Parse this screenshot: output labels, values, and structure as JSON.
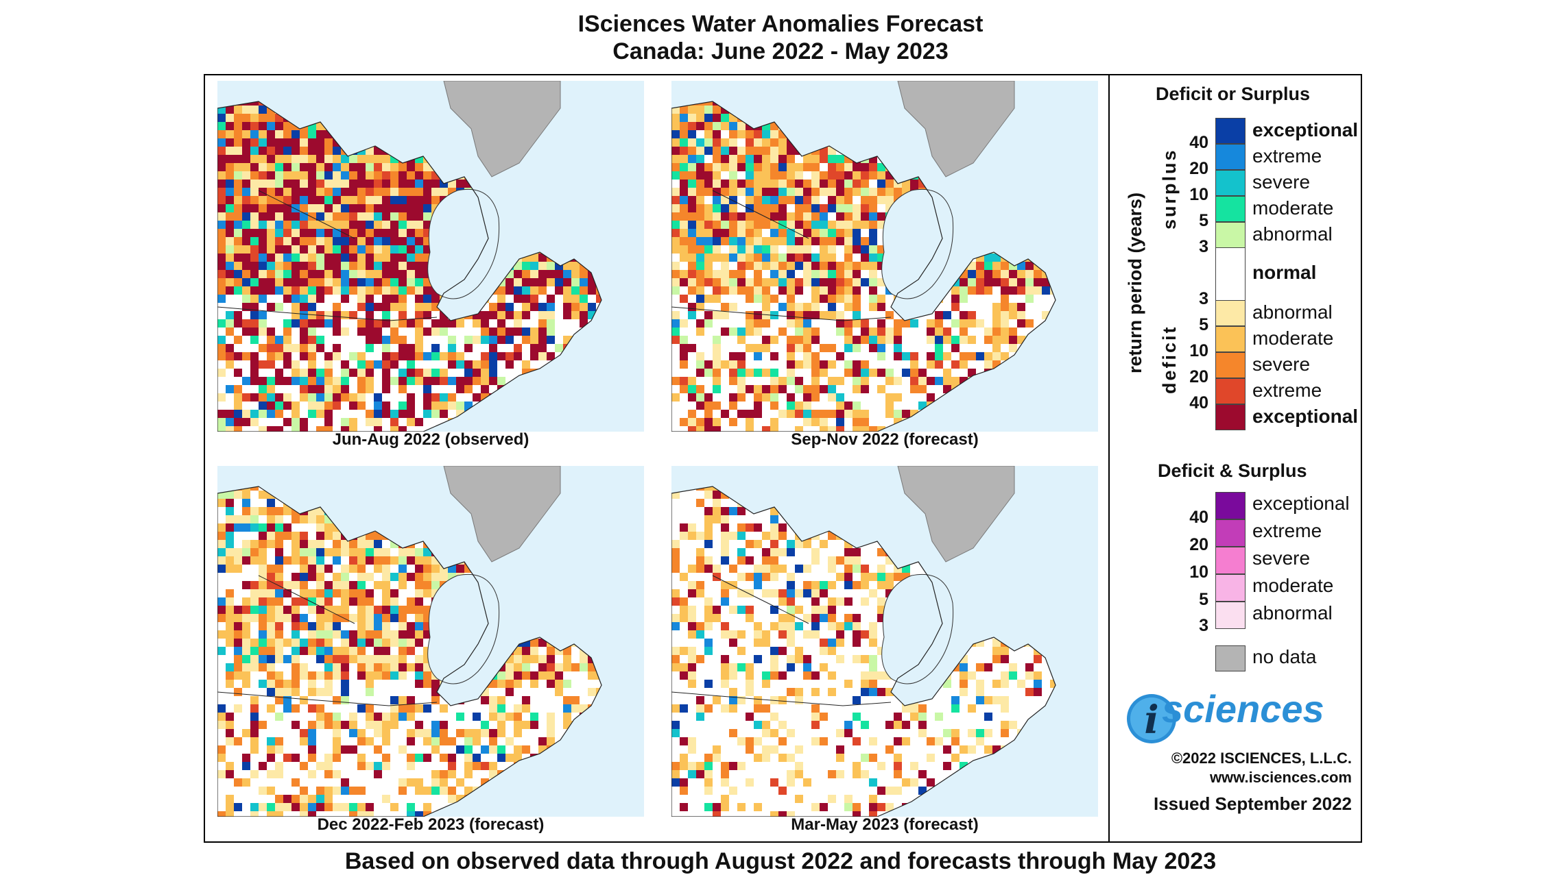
{
  "header": {
    "title": "ISciences Water Anomalies Forecast",
    "subtitle": "Canada: June 2022 - May 2023"
  },
  "panels": [
    {
      "caption": "Jun-Aug 2022 (observed)"
    },
    {
      "caption": "Sep-Nov 2022 (forecast)"
    },
    {
      "caption": "Dec 2022-Feb 2023 (forecast)"
    },
    {
      "caption": "Mar-May 2023 (forecast)"
    }
  ],
  "legend": {
    "section1_title": "Deficit or Surplus",
    "axis_label": "return period (years)",
    "surplus_label": "surplus",
    "deficit_label": "deficit",
    "surplus": [
      {
        "label": "exceptional",
        "color": "#0a3fa6",
        "bold": true
      },
      {
        "label": "extreme",
        "color": "#1688dc"
      },
      {
        "label": "severe",
        "color": "#14c2cc"
      },
      {
        "label": "moderate",
        "color": "#15e3a0"
      },
      {
        "label": "abnormal",
        "color": "#c9f7a6"
      }
    ],
    "surplus_numbers": [
      "40",
      "20",
      "10",
      "5",
      "3"
    ],
    "normal_label": "normal",
    "deficit": [
      {
        "label": "abnormal",
        "color": "#fde9a6"
      },
      {
        "label": "moderate",
        "color": "#fbc257"
      },
      {
        "label": "severe",
        "color": "#f5862b"
      },
      {
        "label": "extreme",
        "color": "#e0472a"
      },
      {
        "label": "exceptional",
        "color": "#9c0a2e",
        "bold": true
      }
    ],
    "deficit_numbers": [
      "3",
      "5",
      "10",
      "20",
      "40"
    ],
    "section2_title": "Deficit & Surplus",
    "both": [
      {
        "label": "exceptional",
        "color": "#7a0a9c"
      },
      {
        "label": "extreme",
        "color": "#c23db8"
      },
      {
        "label": "severe",
        "color": "#f57ed0"
      },
      {
        "label": "moderate",
        "color": "#f8b4e6"
      },
      {
        "label": "abnormal",
        "color": "#fbdff0"
      }
    ],
    "both_numbers": [
      "40",
      "20",
      "10",
      "5",
      "3"
    ],
    "no_data_label": "no data",
    "no_data_color": "#b4b4b4"
  },
  "branding": {
    "logo_text": "sciences",
    "copyright": "©2022 ISCIENCES, L.L.C.",
    "website": "www.isciences.com",
    "issued": "Issued September 2022"
  },
  "footer": "Based on observed data through August 2022 and forecasts through May 2023"
}
